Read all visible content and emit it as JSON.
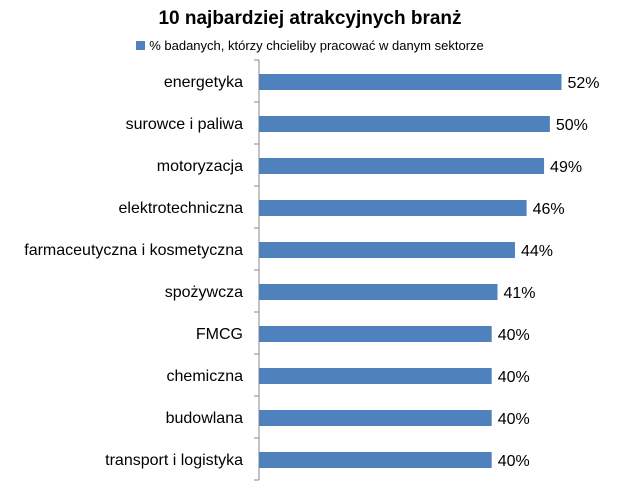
{
  "chart_data": {
    "type": "bar",
    "orientation": "horizontal",
    "title": "10 najbardziej atrakcyjnych branż",
    "legend": {
      "position": "top",
      "label": "% badanych, którzy chcieliby pracować w danym sektorze"
    },
    "series": [
      {
        "name": "% badanych, którzy chcieliby pracować w danym sektorze",
        "color": "#4f81bd",
        "values": [
          52,
          50,
          49,
          46,
          44,
          41,
          40,
          40,
          40,
          40
        ]
      }
    ],
    "categories": [
      "energetyka",
      "surowce i paliwa",
      "motoryzacja",
      "elektrotechniczna",
      "farmaceutyczna i kosmetyczna",
      "spożywcza",
      "FMCG",
      "chemiczna",
      "budowlana",
      "transport i logistyka"
    ],
    "value_labels": [
      "52%",
      "50%",
      "49%",
      "46%",
      "44%",
      "41%",
      "40%",
      "40%",
      "40%",
      "40%"
    ],
    "xlim": [
      0,
      52
    ],
    "grid": false
  }
}
